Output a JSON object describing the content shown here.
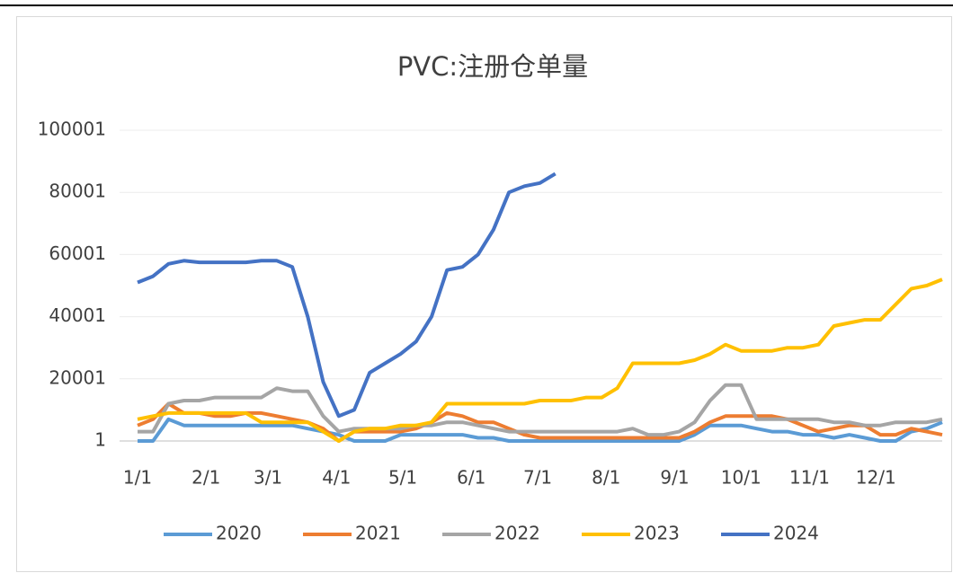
{
  "chart_data": {
    "type": "line",
    "title": "PVC:注册仓单量",
    "x": [
      0,
      7,
      14,
      21,
      28,
      35,
      42,
      49,
      56,
      63,
      70,
      77,
      84,
      91,
      98,
      105,
      112,
      119,
      126,
      133,
      140,
      147,
      154,
      161,
      168,
      175,
      182,
      189,
      196,
      203,
      210,
      217,
      224,
      231,
      238,
      245,
      252,
      259,
      266,
      273,
      280,
      287,
      294,
      301,
      308,
      315,
      322,
      329,
      336,
      343,
      350,
      357,
      364
    ],
    "xlim": [
      0,
      364
    ],
    "xticks": [
      {
        "value": 0,
        "label": "1/1"
      },
      {
        "value": 31,
        "label": "2/1"
      },
      {
        "value": 59,
        "label": "3/1"
      },
      {
        "value": 90,
        "label": "4/1"
      },
      {
        "value": 120,
        "label": "5/1"
      },
      {
        "value": 151,
        "label": "6/1"
      },
      {
        "value": 181,
        "label": "7/1"
      },
      {
        "value": 212,
        "label": "8/1"
      },
      {
        "value": 243,
        "label": "9/1"
      },
      {
        "value": 273,
        "label": "10/1"
      },
      {
        "value": 304,
        "label": "11/1"
      },
      {
        "value": 334,
        "label": "12/1"
      }
    ],
    "ylim": [
      1,
      100001
    ],
    "yticks": [
      1,
      20001,
      40001,
      60001,
      80001,
      100001
    ],
    "grid": true,
    "legend": "bottom",
    "series": [
      {
        "name": "2020",
        "color": "#5b9bd5",
        "values": [
          1,
          1,
          7000,
          5000,
          5000,
          5000,
          5000,
          5000,
          5000,
          5000,
          5000,
          4000,
          3000,
          2000,
          1,
          1,
          1,
          2000,
          2000,
          2000,
          2000,
          2000,
          1000,
          1000,
          1,
          1,
          1,
          1,
          1,
          1,
          1,
          1,
          1,
          1,
          1,
          1,
          2000,
          5000,
          5000,
          5000,
          4000,
          3000,
          3000,
          2000,
          2000,
          1000,
          2000,
          1000,
          1,
          1,
          3000,
          4000,
          6000
        ]
      },
      {
        "name": "2021",
        "color": "#ed7d31",
        "values": [
          5000,
          7000,
          12000,
          9000,
          9000,
          8000,
          8000,
          9000,
          9000,
          8000,
          7000,
          6000,
          4000,
          1,
          3000,
          3000,
          3000,
          3000,
          4000,
          6000,
          9000,
          8000,
          6000,
          6000,
          4000,
          2000,
          1000,
          1000,
          1000,
          1000,
          1000,
          1000,
          1000,
          1000,
          1000,
          1000,
          3000,
          6000,
          8000,
          8000,
          8000,
          8000,
          7000,
          5000,
          3000,
          4000,
          5000,
          5000,
          2000,
          2000,
          4000,
          3000,
          2000
        ]
      },
      {
        "name": "2022",
        "color": "#a5a5a5",
        "values": [
          3000,
          3000,
          12000,
          13000,
          13000,
          14000,
          14000,
          14000,
          14000,
          17000,
          16000,
          16000,
          8000,
          3000,
          4000,
          4000,
          4000,
          4000,
          5000,
          5000,
          6000,
          6000,
          5000,
          4000,
          3000,
          3000,
          3000,
          3000,
          3000,
          3000,
          3000,
          3000,
          4000,
          2000,
          2000,
          3000,
          6000,
          13000,
          18000,
          18000,
          7000,
          7000,
          7000,
          7000,
          7000,
          6000,
          6000,
          5000,
          5000,
          6000,
          6000,
          6000,
          7000
        ]
      },
      {
        "name": "2023",
        "color": "#ffc000",
        "values": [
          7000,
          8000,
          9000,
          9000,
          9000,
          9000,
          9000,
          9000,
          6000,
          6000,
          6000,
          6000,
          3000,
          1,
          3000,
          4000,
          4000,
          5000,
          5000,
          6000,
          12000,
          12000,
          12000,
          12000,
          12000,
          12000,
          13000,
          13000,
          13000,
          14000,
          14000,
          17000,
          25000,
          25000,
          25000,
          25000,
          26000,
          28000,
          31000,
          29000,
          29000,
          29000,
          30000,
          30000,
          31000,
          37000,
          38000,
          39000,
          39000,
          44000,
          49000,
          50000,
          52000
        ]
      },
      {
        "name": "2024",
        "color": "#4472c4",
        "values": [
          51000,
          53000,
          57000,
          58000,
          57500,
          57500,
          57500,
          57500,
          58000,
          58000,
          56000,
          40000,
          19000,
          8000,
          10000,
          22000,
          25000,
          28000,
          32000,
          40000,
          55000,
          56000,
          60000,
          68000,
          80000,
          82000,
          83000,
          86000,
          null,
          null,
          null,
          null,
          null,
          null,
          null,
          null,
          null,
          null,
          null,
          null,
          null,
          null,
          null,
          null,
          null,
          null,
          null,
          null,
          null,
          null,
          null,
          null,
          null
        ]
      }
    ]
  }
}
